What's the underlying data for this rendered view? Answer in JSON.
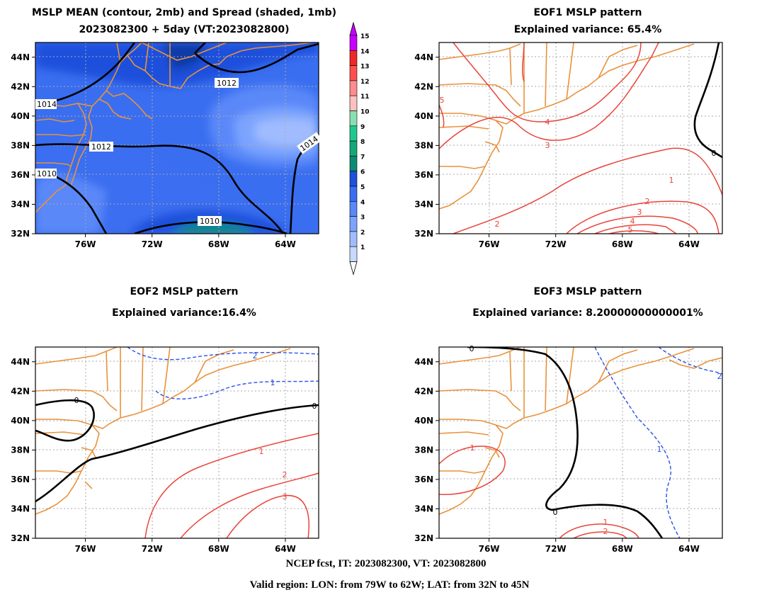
{
  "panel1": {
    "title_line1": "MSLP MEAN (contour, 2mb) and Spread (shaded, 1mb)",
    "title_line2": "2023082300 + 5day (VT:2023082800)"
  },
  "panel2": {
    "title": "EOF1 MSLP pattern",
    "subtitle": "Explained variance: 65.4%"
  },
  "panel3": {
    "title": "EOF2 MSLP pattern",
    "subtitle": "Explained variance:16.4%"
  },
  "panel4": {
    "title": "EOF3 MSLP pattern",
    "subtitle": "Explained variance: 8.20000000000001%"
  },
  "footer": {
    "line1": "NCEP fcst, IT: 2023082300, VT: 2023082800",
    "line2": "Valid region: LON: from 79W to 62W; LAT: from 32N to 45N"
  },
  "colors": {
    "coast": "#e8923c",
    "positive": "#e8443a",
    "negative": "#2b50e8",
    "zero": "#000000",
    "grid": "#aaaaaa"
  },
  "chart_data": [
    {
      "type": "heatmap",
      "name": "mslp_mean_spread",
      "lon_ticks": [
        "76W",
        "72W",
        "68W",
        "64W"
      ],
      "lat_ticks": [
        "44N",
        "42N",
        "40N",
        "38N",
        "36N",
        "34N",
        "32N"
      ],
      "xlim": [
        -79,
        -62
      ],
      "ylim": [
        32,
        45
      ],
      "colorbar_labels": [
        "1",
        "2",
        "3",
        "4",
        "5",
        "6",
        "7",
        "8",
        "9",
        "10",
        "11",
        "12",
        "13",
        "14",
        "15"
      ],
      "colorbar_colors": [
        "#c8d8ff",
        "#a0bcff",
        "#7ca4ff",
        "#5a88f8",
        "#3a6ef0",
        "#1e50dc",
        "#0a8c74",
        "#14a878",
        "#20c890",
        "#88e0b0",
        "#ffc0c0",
        "#ff8c8c",
        "#ff5050",
        "#f02828",
        "#c800ff"
      ],
      "contour_labels": [
        "1012",
        "1014",
        "1012",
        "1010",
        "1010",
        "1014"
      ]
    },
    {
      "type": "line",
      "name": "eof1",
      "lon_ticks": [
        "76W",
        "72W",
        "68W",
        "64W"
      ],
      "lat_ticks": [
        "44N",
        "42N",
        "40N",
        "38N",
        "36N",
        "34N",
        "32N"
      ],
      "xlim": [
        -79,
        -62
      ],
      "ylim": [
        32,
        45
      ],
      "contour_labels": [
        "4",
        "3",
        "1",
        "2",
        "3",
        "4",
        "5",
        "2",
        "0",
        "5"
      ]
    },
    {
      "type": "line",
      "name": "eof2",
      "lon_ticks": [
        "76W",
        "72W",
        "68W",
        "64W"
      ],
      "lat_ticks": [
        "44N",
        "42N",
        "40N",
        "38N",
        "36N",
        "34N",
        "32N"
      ],
      "xlim": [
        -79,
        -62
      ],
      "ylim": [
        32,
        45
      ],
      "contour_labels": [
        "2",
        "1",
        "0",
        "0",
        "1",
        "2",
        "3"
      ]
    },
    {
      "type": "line",
      "name": "eof3",
      "lon_ticks": [
        "76W",
        "72W",
        "68W",
        "64W"
      ],
      "lat_ticks": [
        "44N",
        "42N",
        "40N",
        "38N",
        "36N",
        "34N",
        "32N"
      ],
      "xlim": [
        -79,
        -62
      ],
      "ylim": [
        32,
        45
      ],
      "contour_labels": [
        "0",
        "0",
        "1",
        "1",
        "2",
        "1",
        "2"
      ]
    }
  ]
}
